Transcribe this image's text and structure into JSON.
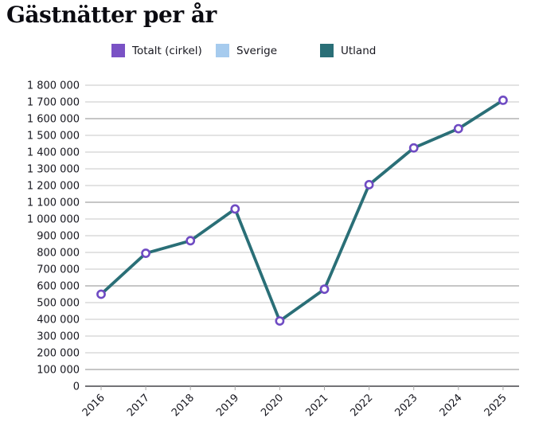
{
  "page": {
    "title": "Gästnätter per år"
  },
  "legend": {
    "items": [
      {
        "label": "Totalt (cirkel)",
        "color": "#7a52c5"
      },
      {
        "label": "Sverige",
        "color": "#a6cbee"
      },
      {
        "label": "Utland",
        "color": "#2a6f77"
      }
    ]
  },
  "chart_data": {
    "type": "line",
    "title": "Gästnätter per år",
    "categories": [
      "2016",
      "2017",
      "2018",
      "2019",
      "2020",
      "2021",
      "2022",
      "2023",
      "2024",
      "2025"
    ],
    "series": [
      {
        "name": "Utland",
        "role": "line",
        "color": "#2a6f77",
        "values": [
          550000,
          795000,
          870000,
          1060000,
          390000,
          580000,
          1205000,
          1425000,
          1540000,
          1710000
        ]
      }
    ],
    "marker": {
      "legend_label": "Totalt (cirkel)",
      "shape": "circle",
      "stroke": "#6f4bc3",
      "fill": "#ffffff"
    },
    "xlabel": "",
    "ylabel": "",
    "ylim": [
      0,
      1800000
    ],
    "y_tick_interval": 100000,
    "grid": true,
    "legend_position": "top",
    "x_tick_rotation": -45,
    "thousands_separator": " "
  }
}
